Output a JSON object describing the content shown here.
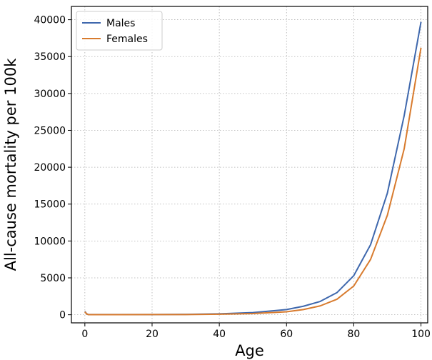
{
  "chart_data": {
    "type": "line",
    "title": "",
    "xlabel": "Age",
    "ylabel": "All-cause mortality per 100k",
    "xlim": [
      -4,
      102
    ],
    "ylim": [
      -1100,
      41800
    ],
    "xticks": [
      0,
      20,
      40,
      60,
      80,
      100
    ],
    "yticks": [
      0,
      5000,
      10000,
      15000,
      20000,
      25000,
      30000,
      35000,
      40000
    ],
    "grid": true,
    "legend_position": "top-left",
    "series": [
      {
        "name": "Males",
        "color": "#3f68ad",
        "x": [
          0,
          0.5,
          1,
          5,
          10,
          20,
          30,
          40,
          50,
          60,
          65,
          70,
          75,
          80,
          85,
          90,
          95,
          100
        ],
        "y": [
          450,
          150,
          20,
          20,
          20,
          30,
          50,
          120,
          290,
          700,
          1150,
          1800,
          3000,
          5300,
          9500,
          16500,
          27000,
          39700
        ]
      },
      {
        "name": "Females",
        "color": "#d87b2e",
        "x": [
          0,
          0.5,
          1,
          5,
          10,
          20,
          30,
          40,
          50,
          60,
          65,
          70,
          75,
          80,
          85,
          90,
          95,
          100
        ],
        "y": [
          400,
          130,
          20,
          15,
          15,
          20,
          30,
          70,
          160,
          400,
          700,
          1200,
          2100,
          3900,
          7500,
          13500,
          22500,
          36200
        ]
      }
    ]
  }
}
